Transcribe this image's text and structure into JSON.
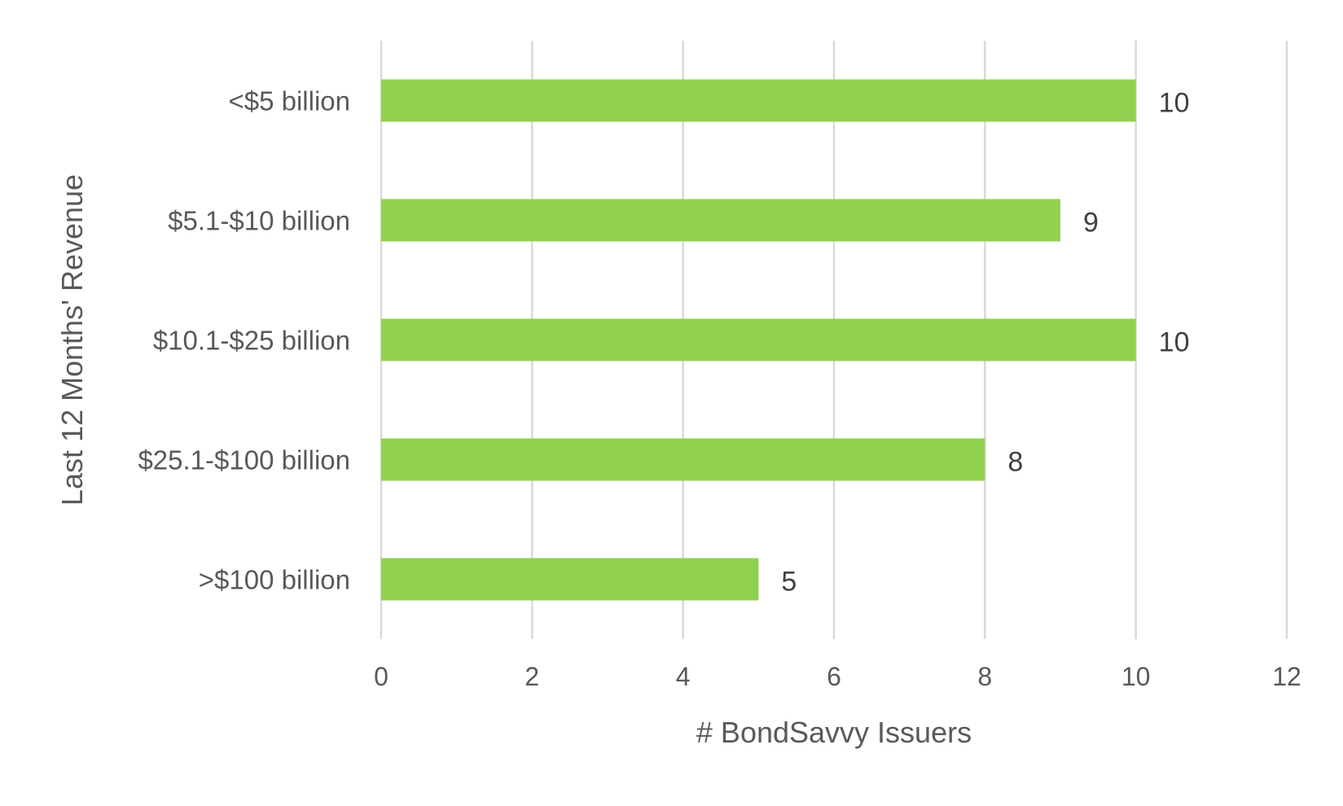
{
  "chart_data": {
    "type": "bar",
    "orientation": "horizontal",
    "title": "",
    "xlabel": "# BondSavvy Issuers",
    "ylabel": "Last 12 Months' Revenue",
    "categories": [
      "<$5 billion",
      "$5.1-$10 billion",
      "$10.1-$25 billion",
      "$25.1-$100 billion",
      ">$100 billion"
    ],
    "values": [
      10,
      9,
      10,
      8,
      5
    ],
    "xlim": [
      0,
      12
    ],
    "xticks": [
      0,
      2,
      4,
      6,
      8,
      10,
      12
    ],
    "grid": "vertical",
    "legend": "none",
    "bar_color": "#92d050",
    "data_labels": true
  }
}
